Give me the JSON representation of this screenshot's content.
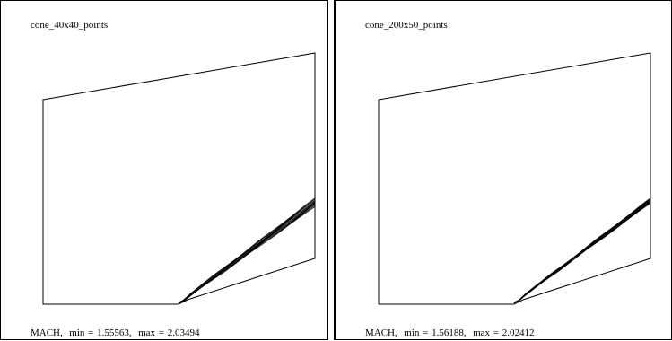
{
  "panels": [
    {
      "title": "cone_40x40_points",
      "caption": {
        "variable": "MACH,",
        "min_text": "min = 1.55563,",
        "max_text": "max = 2.03494"
      },
      "contour_count": 9,
      "contour_spread": 7
    },
    {
      "title": "cone_200x50_points",
      "caption": {
        "variable": "MACH,",
        "min_text": "min = 1.56188,",
        "max_text": "max = 2.02412"
      },
      "contour_count": 9,
      "contour_spread": 4
    }
  ],
  "colors": {
    "line": "#000000",
    "background": "#ffffff"
  }
}
